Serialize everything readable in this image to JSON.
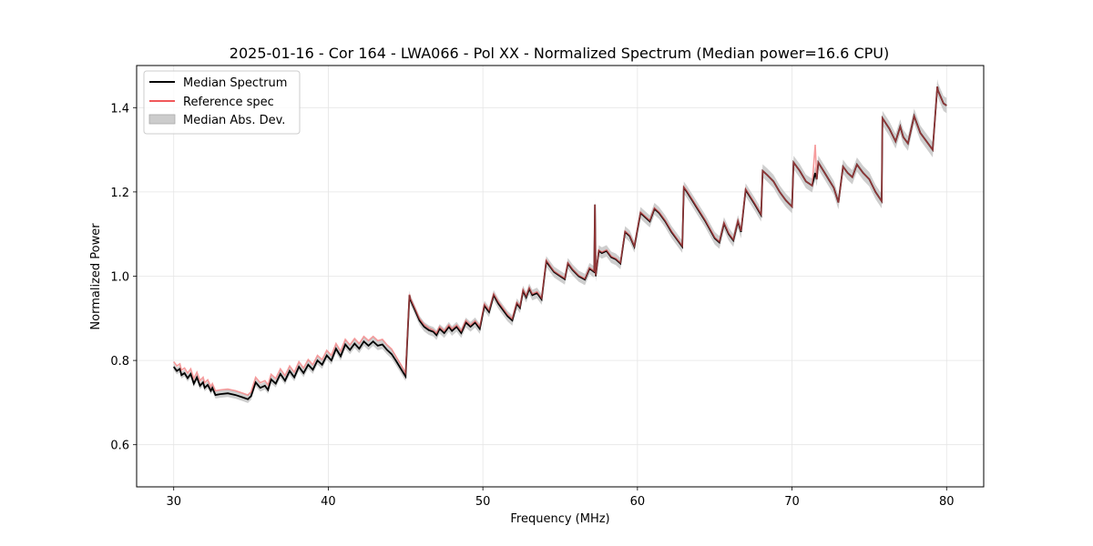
{
  "chart_data": {
    "type": "line",
    "title": "2025-01-16 - Cor 164 - LWA066 - Pol XX - Normalized Spectrum (Median power=16.6 CPU)",
    "xlabel": "Frequency (MHz)",
    "ylabel": "Normalized Power",
    "xlim": [
      27.6,
      82.4
    ],
    "ylim": [
      0.5,
      1.5
    ],
    "xticks": [
      30,
      40,
      50,
      60,
      70,
      80
    ],
    "xtick_labels": [
      "30",
      "40",
      "50",
      "60",
      "70",
      "80"
    ],
    "yticks": [
      0.6,
      0.8,
      1.0,
      1.2,
      1.4
    ],
    "ytick_labels": [
      "0.6",
      "0.8",
      "1.0",
      "1.2",
      "1.4"
    ],
    "grid": true,
    "legend_position": "top-left",
    "legend": [
      {
        "label": "Median Spectrum",
        "kind": "line",
        "color": "#000000"
      },
      {
        "label": "Reference spec",
        "kind": "line",
        "color": "#f0585a"
      },
      {
        "label": "Median Abs. Dev.",
        "kind": "band",
        "color": "#bdbdbd"
      }
    ],
    "series": [
      {
        "name": "Median Spectrum",
        "color": "#000000",
        "x": [
          30.0,
          30.2,
          30.4,
          30.5,
          30.7,
          30.9,
          31.1,
          31.3,
          31.5,
          31.7,
          31.9,
          32.0,
          32.2,
          32.4,
          32.5,
          32.7,
          33.0,
          33.5,
          34.0,
          34.5,
          34.8,
          34.9,
          35.0,
          35.3,
          35.6,
          35.9,
          36.1,
          36.3,
          36.6,
          36.9,
          37.2,
          37.5,
          37.8,
          38.1,
          38.4,
          38.7,
          39.0,
          39.3,
          39.6,
          39.9,
          40.2,
          40.5,
          40.8,
          41.1,
          41.4,
          41.7,
          42.0,
          42.3,
          42.6,
          42.9,
          43.2,
          43.5,
          43.8,
          44.1,
          44.4,
          44.7,
          45.0,
          45.25,
          45.3,
          45.6,
          45.9,
          46.2,
          46.5,
          46.8,
          47.0,
          47.2,
          47.5,
          47.8,
          48.0,
          48.3,
          48.6,
          48.9,
          49.2,
          49.5,
          49.8,
          50.1,
          50.4,
          50.7,
          51.0,
          51.3,
          51.6,
          51.9,
          52.2,
          52.4,
          52.6,
          52.8,
          53.0,
          53.2,
          53.5,
          53.8,
          54.1,
          54.3,
          54.4,
          54.6,
          55.0,
          55.3,
          55.5,
          55.8,
          56.2,
          56.6,
          56.9,
          57.2,
          57.25,
          57.3,
          57.5,
          57.7,
          58.0,
          58.3,
          58.6,
          58.9,
          59.2,
          59.5,
          59.8,
          60.2,
          60.5,
          60.8,
          61.1,
          61.4,
          61.8,
          62.2,
          62.6,
          62.9,
          63.0,
          63.2,
          63.8,
          64.4,
          65.0,
          65.3,
          65.6,
          65.9,
          66.2,
          66.5,
          66.7,
          67.0,
          67.6,
          68.0,
          68.1,
          68.4,
          68.8,
          69.2,
          69.6,
          70.0,
          70.1,
          70.5,
          70.9,
          71.3,
          71.5,
          71.6,
          71.7,
          72.2,
          72.7,
          73.0,
          73.3,
          73.6,
          73.9,
          74.2,
          74.6,
          75.0,
          75.4,
          75.8,
          75.85,
          76.3,
          76.7,
          77.0,
          77.2,
          77.5,
          77.9,
          78.1,
          78.3,
          78.7,
          79.1,
          79.4,
          79.45,
          79.8,
          80.0
        ],
        "y": [
          0.785,
          0.775,
          0.78,
          0.765,
          0.77,
          0.758,
          0.768,
          0.745,
          0.76,
          0.74,
          0.748,
          0.735,
          0.742,
          0.728,
          0.735,
          0.718,
          0.72,
          0.722,
          0.718,
          0.712,
          0.708,
          0.712,
          0.715,
          0.748,
          0.735,
          0.74,
          0.73,
          0.755,
          0.745,
          0.768,
          0.752,
          0.775,
          0.76,
          0.785,
          0.77,
          0.79,
          0.778,
          0.8,
          0.79,
          0.812,
          0.8,
          0.828,
          0.81,
          0.838,
          0.825,
          0.84,
          0.828,
          0.845,
          0.835,
          0.845,
          0.835,
          0.838,
          0.825,
          0.815,
          0.798,
          0.78,
          0.762,
          0.955,
          0.945,
          0.92,
          0.895,
          0.88,
          0.872,
          0.868,
          0.86,
          0.875,
          0.865,
          0.88,
          0.87,
          0.88,
          0.865,
          0.89,
          0.88,
          0.89,
          0.875,
          0.93,
          0.915,
          0.955,
          0.935,
          0.92,
          0.905,
          0.895,
          0.935,
          0.925,
          0.965,
          0.95,
          0.97,
          0.955,
          0.96,
          0.945,
          1.035,
          1.025,
          1.02,
          1.01,
          1.0,
          0.993,
          1.03,
          1.015,
          1.0,
          0.992,
          1.018,
          1.01,
          1.17,
          1.0,
          1.06,
          1.055,
          1.06,
          1.045,
          1.04,
          1.03,
          1.105,
          1.095,
          1.07,
          1.15,
          1.14,
          1.13,
          1.16,
          1.15,
          1.13,
          1.105,
          1.085,
          1.07,
          1.21,
          1.2,
          1.165,
          1.13,
          1.09,
          1.08,
          1.125,
          1.1,
          1.085,
          1.13,
          1.105,
          1.205,
          1.17,
          1.145,
          1.25,
          1.24,
          1.225,
          1.2,
          1.18,
          1.165,
          1.27,
          1.25,
          1.225,
          1.215,
          1.245,
          1.23,
          1.27,
          1.24,
          1.21,
          1.175,
          1.26,
          1.245,
          1.235,
          1.265,
          1.245,
          1.23,
          1.2,
          1.178,
          1.375,
          1.35,
          1.32,
          1.355,
          1.33,
          1.315,
          1.38,
          1.36,
          1.34,
          1.32,
          1.3,
          1.45,
          1.44,
          1.41,
          1.405
        ]
      },
      {
        "name": "Reference spec",
        "color": "#f0585a",
        "x": [
          30.0,
          30.2,
          30.4,
          30.5,
          30.7,
          30.9,
          31.1,
          31.3,
          31.5,
          31.7,
          31.9,
          32.0,
          32.2,
          32.4,
          32.5,
          32.7,
          33.0,
          33.5,
          34.0,
          34.5,
          34.8,
          34.9,
          35.0,
          35.3,
          35.6,
          35.9,
          36.1,
          36.3,
          36.6,
          36.9,
          37.2,
          37.5,
          37.8,
          38.1,
          38.4,
          38.7,
          39.0,
          39.3,
          39.6,
          39.9,
          40.2,
          40.5,
          40.8,
          41.1,
          41.4,
          41.7,
          42.0,
          42.3,
          42.6,
          42.9,
          43.2,
          43.5,
          43.8,
          44.1,
          44.4,
          44.7,
          45.0,
          45.25,
          45.3,
          45.6,
          45.9,
          46.2,
          46.5,
          46.8,
          47.0,
          47.2,
          47.5,
          47.8,
          48.0,
          48.3,
          48.6,
          48.9,
          49.2,
          49.5,
          49.8,
          50.1,
          50.4,
          50.7,
          51.0,
          51.3,
          51.6,
          51.9,
          52.2,
          52.4,
          52.6,
          52.8,
          53.0,
          53.2,
          53.5,
          53.8,
          54.1,
          54.3,
          54.4,
          54.6,
          55.0,
          55.3,
          55.5,
          55.8,
          56.2,
          56.6,
          56.9,
          57.2,
          57.25,
          57.3,
          57.5,
          57.7,
          58.0,
          58.3,
          58.6,
          58.9,
          59.2,
          59.5,
          59.8,
          60.2,
          60.5,
          60.8,
          61.1,
          61.4,
          61.8,
          62.2,
          62.6,
          62.9,
          63.0,
          63.2,
          63.8,
          64.4,
          65.0,
          65.3,
          65.6,
          65.9,
          66.2,
          66.5,
          66.7,
          67.0,
          67.6,
          68.0,
          68.1,
          68.4,
          68.8,
          69.2,
          69.6,
          70.0,
          70.1,
          70.5,
          70.9,
          71.3,
          71.5,
          71.6,
          71.7,
          72.2,
          72.7,
          73.0,
          73.3,
          73.6,
          73.9,
          74.2,
          74.6,
          75.0,
          75.4,
          75.8,
          75.85,
          76.3,
          76.7,
          77.0,
          77.2,
          77.5,
          77.9,
          78.1,
          78.3,
          78.7,
          79.1,
          79.4,
          79.45,
          79.8,
          80.0
        ],
        "y": [
          0.797,
          0.787,
          0.792,
          0.777,
          0.782,
          0.77,
          0.78,
          0.757,
          0.772,
          0.752,
          0.76,
          0.747,
          0.754,
          0.738,
          0.745,
          0.728,
          0.73,
          0.732,
          0.728,
          0.722,
          0.718,
          0.722,
          0.725,
          0.76,
          0.747,
          0.752,
          0.742,
          0.767,
          0.757,
          0.78,
          0.764,
          0.787,
          0.772,
          0.797,
          0.782,
          0.802,
          0.79,
          0.812,
          0.802,
          0.824,
          0.812,
          0.84,
          0.822,
          0.85,
          0.837,
          0.852,
          0.84,
          0.857,
          0.847,
          0.857,
          0.847,
          0.85,
          0.837,
          0.827,
          0.808,
          0.79,
          0.77,
          0.957,
          0.948,
          0.924,
          0.899,
          0.885,
          0.877,
          0.872,
          0.865,
          0.88,
          0.87,
          0.884,
          0.875,
          0.884,
          0.87,
          0.895,
          0.884,
          0.894,
          0.88,
          0.934,
          0.919,
          0.958,
          0.939,
          0.924,
          0.909,
          0.899,
          0.938,
          0.928,
          0.968,
          0.953,
          0.973,
          0.958,
          0.963,
          0.948,
          1.038,
          1.028,
          1.022,
          1.012,
          1.002,
          0.995,
          1.032,
          1.017,
          1.002,
          0.994,
          1.02,
          1.012,
          1.17,
          1.002,
          1.062,
          1.057,
          1.062,
          1.047,
          1.042,
          1.032,
          1.107,
          1.097,
          1.072,
          1.152,
          1.142,
          1.132,
          1.162,
          1.152,
          1.132,
          1.107,
          1.087,
          1.072,
          1.212,
          1.202,
          1.167,
          1.132,
          1.092,
          1.082,
          1.127,
          1.102,
          1.087,
          1.132,
          1.107,
          1.207,
          1.172,
          1.147,
          1.25,
          1.24,
          1.225,
          1.2,
          1.18,
          1.165,
          1.27,
          1.25,
          1.225,
          1.215,
          1.312,
          1.23,
          1.27,
          1.24,
          1.21,
          1.175,
          1.26,
          1.245,
          1.235,
          1.265,
          1.245,
          1.23,
          1.2,
          1.178,
          1.375,
          1.35,
          1.32,
          1.355,
          1.33,
          1.315,
          1.38,
          1.36,
          1.34,
          1.32,
          1.3,
          1.45,
          1.44,
          1.41,
          1.405
        ]
      }
    ],
    "band": {
      "name": "Median Abs. Dev.",
      "color": "#bdbdbd",
      "half_width_low_freq": 0.008,
      "half_width_high_freq": 0.018
    }
  }
}
